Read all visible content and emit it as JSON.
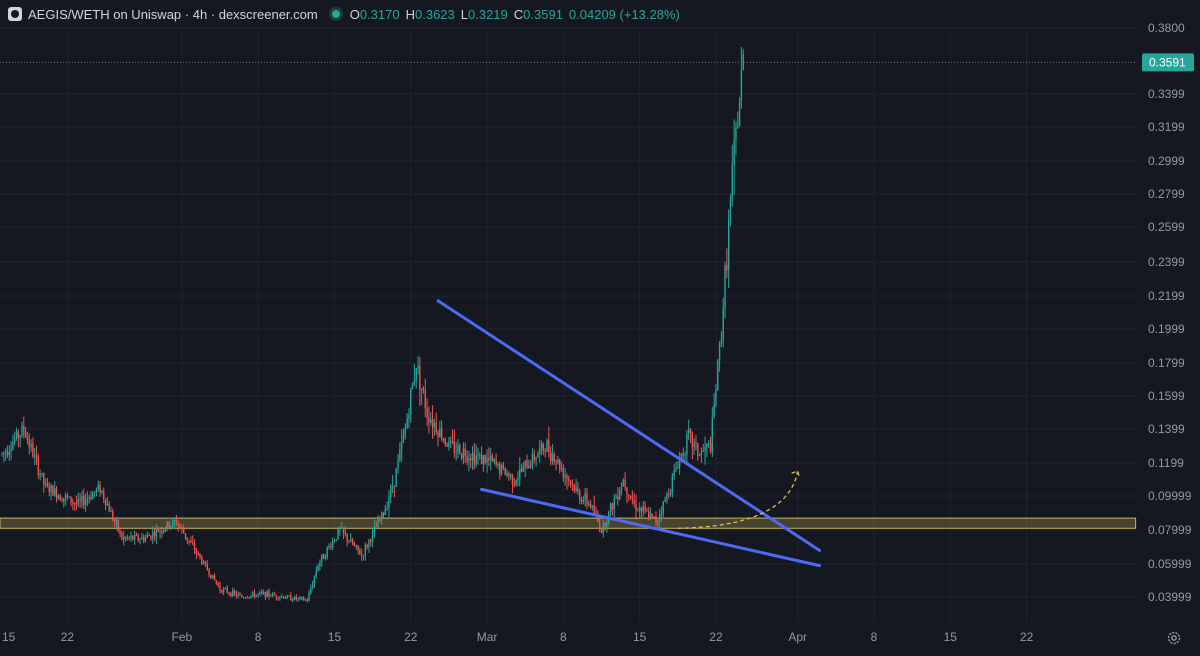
{
  "header": {
    "title": "AEGIS/WETH on Uniswap · 4h · dexscreener.com",
    "o_label": "O",
    "o_value": "0.3170",
    "h_label": "H",
    "h_value": "0.3623",
    "l_label": "L",
    "l_value": "0.3219",
    "c_label": "C",
    "c_value": "0.3591",
    "change": "0.04209 (+13.28%)"
  },
  "price_axis": {
    "ticks": [
      "0.3800",
      "0.3399",
      "0.3199",
      "0.2999",
      "0.2799",
      "0.2599",
      "0.2399",
      "0.2199",
      "0.1999",
      "0.1799",
      "0.1599",
      "0.1399",
      "0.1199",
      "0.09999",
      "0.07999",
      "0.05999",
      "0.03999"
    ],
    "current_price": "0.3591"
  },
  "time_axis": {
    "labels": [
      "15",
      "22",
      "Feb",
      "8",
      "15",
      "22",
      "Mar",
      "8",
      "15",
      "22",
      "Apr",
      "8",
      "15",
      "22"
    ]
  },
  "icons": {
    "settings": "gear-icon",
    "logo": "dexscreener-logo-icon",
    "live": "live-status-dot"
  },
  "colors": {
    "background": "#151821",
    "up": "#26a69a",
    "down": "#ef5350",
    "trendline": "#4b6bf5",
    "support_zone": "#c8b560",
    "projection": "#e0c040",
    "price_badge": "#26a69a"
  },
  "chart_data": {
    "type": "candlestick",
    "title": "AEGIS/WETH on Uniswap · 4h · dexscreener.com",
    "timeframe": "4h",
    "x_ticks": [
      "15",
      "22",
      "Feb",
      "8",
      "15",
      "22",
      "Mar",
      "8",
      "15",
      "22",
      "Apr",
      "8",
      "15",
      "22"
    ],
    "y_ticks": [
      0.38,
      0.3399,
      0.3199,
      0.2999,
      0.2799,
      0.2599,
      0.2399,
      0.2199,
      0.1999,
      0.1799,
      0.1599,
      0.1399,
      0.1199,
      0.09999,
      0.07999,
      0.05999,
      0.03999
    ],
    "ylim": [
      0.025,
      0.392
    ],
    "grid": true,
    "last_ohlc": {
      "open": 0.317,
      "high": 0.3623,
      "low": 0.3219,
      "close": 0.3591
    },
    "change": 0.04209,
    "change_pct": 13.28,
    "price_path": [
      {
        "day": 0,
        "price": 0.125
      },
      {
        "day": 2,
        "price": 0.14
      },
      {
        "day": 4,
        "price": 0.105
      },
      {
        "day": 7,
        "price": 0.095
      },
      {
        "day": 9,
        "price": 0.105
      },
      {
        "day": 11,
        "price": 0.075
      },
      {
        "day": 13,
        "price": 0.075
      },
      {
        "day": 16,
        "price": 0.085
      },
      {
        "day": 18,
        "price": 0.065
      },
      {
        "day": 20,
        "price": 0.045
      },
      {
        "day": 22,
        "price": 0.04
      },
      {
        "day": 24,
        "price": 0.042
      },
      {
        "day": 28,
        "price": 0.038
      },
      {
        "day": 29,
        "price": 0.06
      },
      {
        "day": 31,
        "price": 0.08
      },
      {
        "day": 33,
        "price": 0.065
      },
      {
        "day": 35,
        "price": 0.09
      },
      {
        "day": 36,
        "price": 0.11
      },
      {
        "day": 37,
        "price": 0.14
      },
      {
        "day": 38,
        "price": 0.18
      },
      {
        "day": 39,
        "price": 0.15
      },
      {
        "day": 41,
        "price": 0.13
      },
      {
        "day": 43,
        "price": 0.125
      },
      {
        "day": 45,
        "price": 0.12
      },
      {
        "day": 47,
        "price": 0.11
      },
      {
        "day": 49,
        "price": 0.125
      },
      {
        "day": 50,
        "price": 0.13
      },
      {
        "day": 52,
        "price": 0.11
      },
      {
        "day": 53,
        "price": 0.1
      },
      {
        "day": 54,
        "price": 0.095
      },
      {
        "day": 55,
        "price": 0.08
      },
      {
        "day": 57,
        "price": 0.11
      },
      {
        "day": 58,
        "price": 0.095
      },
      {
        "day": 60,
        "price": 0.085
      },
      {
        "day": 61,
        "price": 0.1
      },
      {
        "day": 62,
        "price": 0.12
      },
      {
        "day": 63,
        "price": 0.135
      },
      {
        "day": 64,
        "price": 0.125
      },
      {
        "day": 65,
        "price": 0.13
      },
      {
        "day": 66,
        "price": 0.2
      },
      {
        "day": 67,
        "price": 0.29
      },
      {
        "day": 68,
        "price": 0.36
      }
    ],
    "annotations": [
      {
        "type": "trendline",
        "from": {
          "day": 40,
          "price": 0.217
        },
        "to": {
          "day": 75,
          "price": 0.068
        }
      },
      {
        "type": "trendline",
        "from": {
          "day": 44,
          "price": 0.104
        },
        "to": {
          "day": 75,
          "price": 0.059
        }
      },
      {
        "type": "support_zone",
        "price_low": 0.081,
        "price_high": 0.087,
        "from_day": 0,
        "to_day": 104
      },
      {
        "type": "projection_arrow",
        "from": {
          "day": 62,
          "price": 0.081
        },
        "to": {
          "day": 73,
          "price": 0.115
        }
      }
    ]
  }
}
